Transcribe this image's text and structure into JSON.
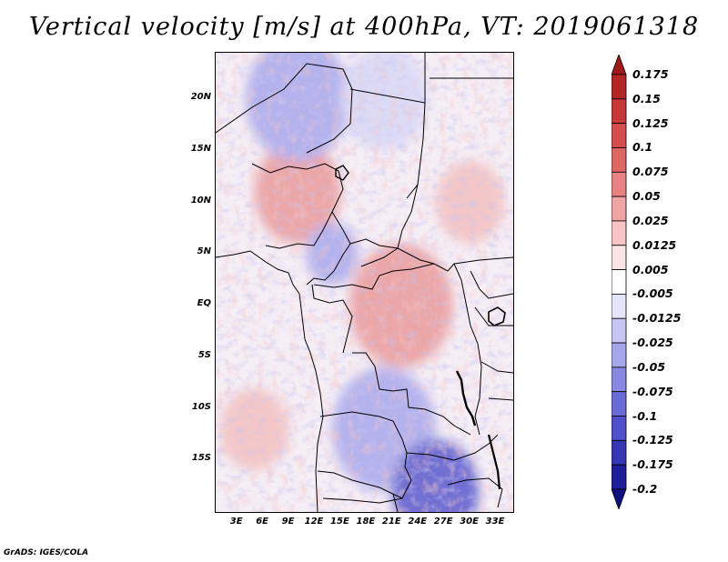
{
  "title": "Vertical velocity [m/s] at 400hPa, VT: 2019061318",
  "credit": "GrADS: IGES/COLA",
  "lat_labels": [
    "20N",
    "15N",
    "10N",
    "5N",
    "EQ",
    "5S",
    "10S",
    "15S"
  ],
  "lat_values": [
    20,
    15,
    10,
    5,
    0,
    -5,
    -10,
    -15
  ],
  "lon_labels": [
    "3E",
    "6E",
    "9E",
    "12E",
    "15E",
    "18E",
    "21E",
    "24E",
    "27E",
    "30E",
    "33E"
  ],
  "lon_values": [
    3,
    6,
    9,
    12,
    15,
    18,
    21,
    24,
    27,
    30,
    33
  ],
  "domain": {
    "lon_min": 0.5,
    "lon_max": 35.0,
    "lat_min": -20.0,
    "lat_max": 24.5
  },
  "colorbar": {
    "labels": [
      "0.175",
      "0.15",
      "0.125",
      "0.1",
      "0.075",
      "0.05",
      "0.025",
      "0.0125",
      "0.005",
      "-0.005",
      "-0.0125",
      "-0.025",
      "-0.05",
      "-0.075",
      "-0.1",
      "-0.125",
      "-0.175",
      "-0.2"
    ],
    "colors": [
      "#9e1a1a",
      "#b42626",
      "#c83838",
      "#d64d4d",
      "#e06666",
      "#e98383",
      "#f0a3a3",
      "#f6c4c4",
      "#fbe4e4",
      "#ffffff",
      "#e4e4fb",
      "#c6c6f4",
      "#a6a6ec",
      "#8888e2",
      "#6b6bd8",
      "#5050ca",
      "#3636b4",
      "#1e1e9a",
      "#10107e"
    ]
  },
  "colors": {
    "neutral": "#f5eef5",
    "pos_light": "#f3c1c1",
    "pos_mid": "#ea9a9a",
    "pos_dark": "#cc3030",
    "neg_light": "#d8d8f6",
    "neg_mid": "#a8a8ec",
    "neg_dark": "#5a5acc"
  },
  "field_regions": [
    {
      "label": "Sahel positive",
      "lon": 10,
      "lat": 11,
      "r": 5,
      "value": 0.05
    },
    {
      "label": "Central Africa positive",
      "lon": 22,
      "lat": 0,
      "r": 6,
      "value": 0.05
    },
    {
      "label": "Cameroon negative",
      "lon": 14,
      "lat": 5,
      "r": 3,
      "value": -0.05
    },
    {
      "label": "Sahara negative",
      "lon": 10,
      "lat": 20,
      "r": 6,
      "value": -0.05
    },
    {
      "label": "Libya negative",
      "lon": 20,
      "lat": 20,
      "r": 5,
      "value": -0.025
    },
    {
      "label": "Angola negative",
      "lon": 20,
      "lat": -12,
      "r": 6,
      "value": -0.05
    },
    {
      "label": "Atlantic positive",
      "lon": 5,
      "lat": -12,
      "r": 4,
      "value": 0.025
    },
    {
      "label": "Southern Africa negative",
      "lon": 26,
      "lat": -18,
      "r": 5,
      "value": -0.075
    },
    {
      "label": "Sudan positive",
      "lon": 30,
      "lat": 10,
      "r": 4,
      "value": 0.025
    }
  ]
}
